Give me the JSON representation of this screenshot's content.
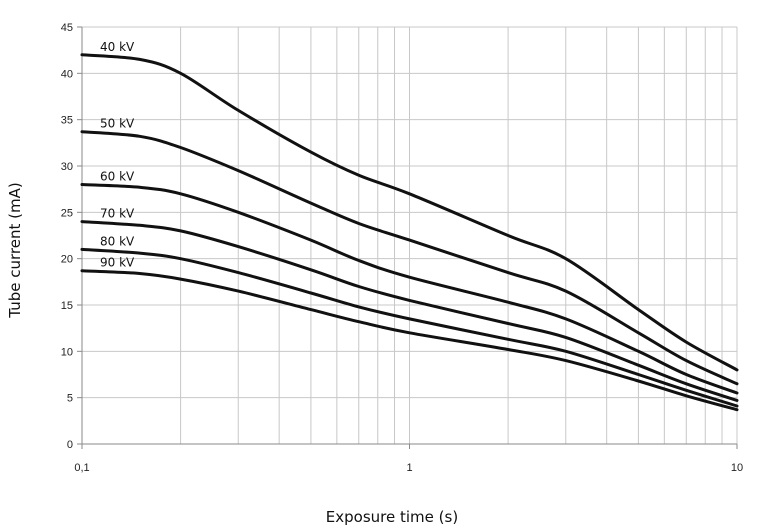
{
  "chart_data": {
    "type": "line",
    "xscale": "log",
    "xlim": [
      0.1,
      10
    ],
    "ylim": [
      0,
      45
    ],
    "xlabel": "Exposure time (s)",
    "ylabel": "Tube current (mA)",
    "grid": true,
    "x_ticks": [
      {
        "value": 0.1,
        "label": "0,1"
      },
      {
        "value": 1,
        "label": "1"
      },
      {
        "value": 10,
        "label": "10"
      }
    ],
    "x_minor_gridlines": [
      0.2,
      0.3,
      0.4,
      0.5,
      0.6,
      0.7,
      0.8,
      0.9,
      2,
      3,
      4,
      5,
      6,
      7,
      8,
      9
    ],
    "y_ticks": [
      0,
      5,
      10,
      15,
      20,
      25,
      30,
      35,
      40,
      45
    ],
    "line_color": "#111111",
    "series": [
      {
        "name": "40 kV",
        "x": [
          0.1,
          0.15,
          0.2,
          0.3,
          0.5,
          0.7,
          1,
          2,
          3,
          5,
          7,
          10
        ],
        "values": [
          42.0,
          41.5,
          40.0,
          36.0,
          31.5,
          29.0,
          27.0,
          22.5,
          20.0,
          14.5,
          11.0,
          8.0
        ]
      },
      {
        "name": "50 kV",
        "x": [
          0.1,
          0.15,
          0.2,
          0.3,
          0.5,
          0.7,
          1,
          2,
          3,
          5,
          7,
          10
        ],
        "values": [
          33.7,
          33.2,
          32.0,
          29.5,
          26.0,
          23.8,
          22.0,
          18.5,
          16.5,
          12.0,
          9.0,
          6.5
        ]
      },
      {
        "name": "60 kV",
        "x": [
          0.1,
          0.15,
          0.2,
          0.3,
          0.5,
          0.7,
          1,
          2,
          3,
          5,
          7,
          10
        ],
        "values": [
          28.0,
          27.7,
          27.0,
          25.0,
          22.0,
          19.8,
          18.0,
          15.3,
          13.5,
          10.0,
          7.5,
          5.5
        ]
      },
      {
        "name": "70 kV",
        "x": [
          0.1,
          0.15,
          0.2,
          0.3,
          0.5,
          0.7,
          1,
          2,
          3,
          5,
          7,
          10
        ],
        "values": [
          24.0,
          23.6,
          23.0,
          21.3,
          18.8,
          17.0,
          15.5,
          13.0,
          11.5,
          8.5,
          6.5,
          4.7
        ]
      },
      {
        "name": "80 kV",
        "x": [
          0.1,
          0.15,
          0.2,
          0.3,
          0.5,
          0.7,
          1,
          2,
          3,
          5,
          7,
          10
        ],
        "values": [
          21.0,
          20.6,
          20.0,
          18.5,
          16.3,
          14.8,
          13.5,
          11.3,
          10.0,
          7.5,
          5.8,
          4.1
        ]
      },
      {
        "name": "90 kV",
        "x": [
          0.1,
          0.15,
          0.2,
          0.3,
          0.5,
          0.7,
          1,
          2,
          3,
          5,
          7,
          10
        ],
        "values": [
          18.7,
          18.4,
          17.8,
          16.5,
          14.5,
          13.2,
          12.0,
          10.2,
          9.0,
          6.8,
          5.2,
          3.7
        ]
      }
    ]
  }
}
